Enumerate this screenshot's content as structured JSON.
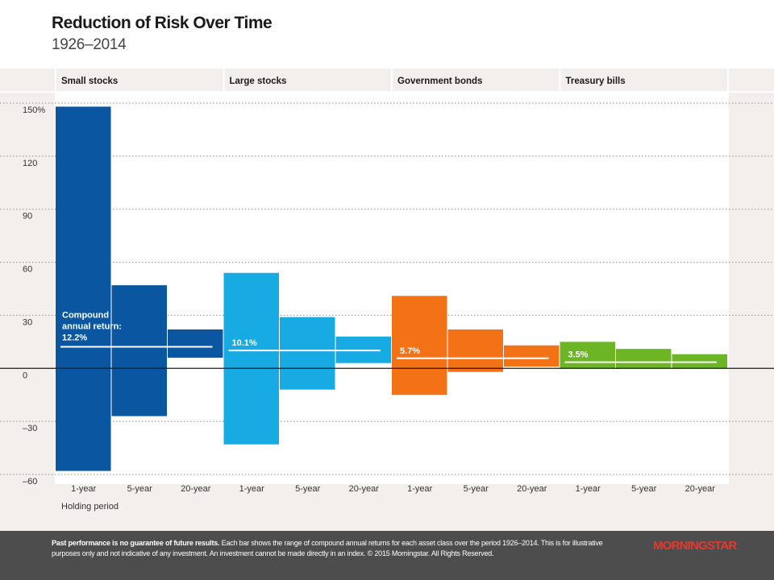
{
  "header": {
    "title": "Reduction of Risk Over Time",
    "subtitle": "1926–2014"
  },
  "chart_data": {
    "type": "bar",
    "title": "Reduction of Risk Over Time",
    "subtitle": "1926–2014",
    "xlabel": "Holding period",
    "ylabel": "",
    "ylim": [
      -60,
      150
    ],
    "yticks": [
      {
        "value": 150,
        "label": "150%"
      },
      {
        "value": 120,
        "label": "120"
      },
      {
        "value": 90,
        "label": "90"
      },
      {
        "value": 60,
        "label": "60"
      },
      {
        "value": 30,
        "label": "30"
      },
      {
        "value": 0,
        "label": "0"
      },
      {
        "value": -30,
        "label": "–30"
      },
      {
        "value": -60,
        "label": "–60"
      }
    ],
    "grid": true,
    "periods": [
      "1-year",
      "5-year",
      "20-year"
    ],
    "groups": [
      {
        "name": "Small stocks",
        "color": "#0a56a0",
        "compound_label": "12.2%",
        "compound_value": 12.2,
        "ranges": [
          [
            -58,
            148
          ],
          [
            -27,
            47
          ],
          [
            6,
            22
          ]
        ]
      },
      {
        "name": "Large stocks",
        "color": "#17aae3",
        "compound_label": "10.1%",
        "compound_value": 10.1,
        "ranges": [
          [
            -43,
            54
          ],
          [
            -12,
            29
          ],
          [
            3,
            18
          ]
        ]
      },
      {
        "name": "Government bonds",
        "color": "#f47216",
        "compound_label": "5.7%",
        "compound_value": 5.7,
        "ranges": [
          [
            -15,
            41
          ],
          [
            -2,
            22
          ],
          [
            1,
            13
          ]
        ]
      },
      {
        "name": "Treasury bills",
        "color": "#6cb625",
        "compound_label": "3.5%",
        "compound_value": 3.5,
        "ranges": [
          [
            0,
            15
          ],
          [
            0,
            11
          ],
          [
            0,
            8
          ]
        ]
      }
    ],
    "annotation": "Compound annual return:"
  },
  "footer": {
    "disclaimer_bold": "Past performance is no guarantee of future results.",
    "disclaimer": " Each bar shows the range of compound annual returns for each asset class over the period 1926–2014. This is for illustrative purposes only and not indicative of any investment. An investment cannot be made directly in an index. © 2015 Morningstar. All Rights Reserved.",
    "logo": "MORNINGSTAR"
  },
  "colors": {
    "panel_bg": "#f3efec",
    "grid": "#8f8f8f",
    "zero_line": "#1a1a1a",
    "footer_bg": "#4d4d4d",
    "brand_red": "#e8372c"
  }
}
